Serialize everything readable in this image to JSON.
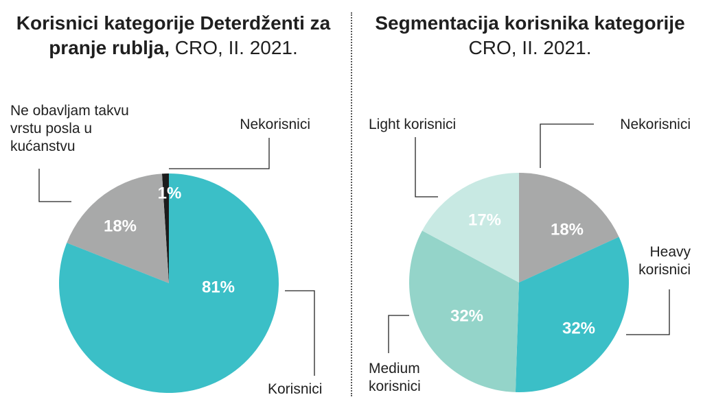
{
  "left": {
    "title_bold": "Korisnici kategorije Deterdženti za pranje rublja,",
    "title_rest": " CRO, II. 2021."
  },
  "right": {
    "title_bold": "Segmentacija korisnika kategorije",
    "title_rest": "CRO, II. 2021."
  },
  "chart_data": [
    {
      "type": "pie",
      "title": "Korisnici kategorije Deterdženti za pranje rublja, CRO, II. 2021.",
      "slices": [
        {
          "name": "Korisnici",
          "label": "Korisnici",
          "value": 81,
          "pct": "81%",
          "color": "#3bbfc7"
        },
        {
          "name": "Ne obavljam takvu vrstu posla u kućanstvu",
          "label": [
            "Ne obavljam takvu",
            "vrstu posla u",
            "kućanstvu"
          ],
          "value": 18,
          "pct": "18%",
          "color": "#a8a9a9"
        },
        {
          "name": "Nekorisnici",
          "label": "Nekorisnici",
          "value": 1,
          "pct": "1%",
          "color": "#1c1c1c"
        }
      ]
    },
    {
      "type": "pie",
      "title": "Segmentacija korisnika kategorije CRO, II. 2021.",
      "slices": [
        {
          "name": "Nekorisnici",
          "label": "Nekorisnici",
          "value": 18,
          "pct": "18%",
          "color": "#a8a9a9"
        },
        {
          "name": "Heavy korisnici",
          "label": [
            "Heavy",
            "korisnici"
          ],
          "value": 32,
          "pct": "32%",
          "color": "#3bbfc7"
        },
        {
          "name": "Medium korisnici",
          "label": [
            "Medium",
            "korisnici"
          ],
          "value": 32,
          "pct": "32%",
          "color": "#94d4c9"
        },
        {
          "name": "Light korisnici",
          "label": "Light korisnici",
          "value": 17,
          "pct": "17%",
          "color": "#c8e9e3"
        }
      ]
    }
  ]
}
